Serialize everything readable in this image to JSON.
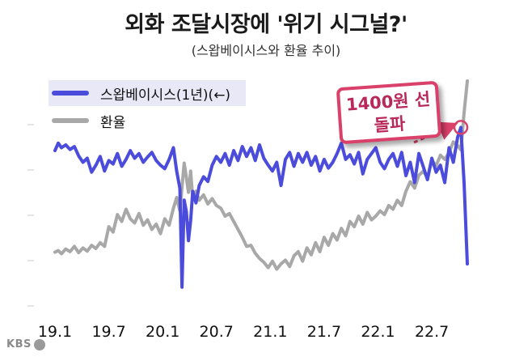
{
  "title": "외화 조달시장에 '위기 시그널?'",
  "subtitle": "(스왑베이시스와 환율 추이)",
  "logo": "KBS",
  "callout": {
    "line1": "1400원 선",
    "line2": "돌파",
    "color": "#d9406a"
  },
  "chart_data": {
    "type": "line",
    "title": "외화 조달시장에 '위기 시그널?'",
    "subtitle": "(스왑베이시스와 환율 추이)",
    "xlabel": "",
    "ylabel": "",
    "legend_position": "top-left",
    "x_ticks": [
      "19.1",
      "19.7",
      "20.1",
      "20.7",
      "21.1",
      "21.7",
      "22.1",
      "22.7"
    ],
    "x_range": [
      2019.0,
      2022.92
    ],
    "grid": false,
    "series": [
      {
        "name": "스왑베이시스(1년)(←)",
        "color": "#4b4bdc",
        "x": [
          2019.0,
          2019.03,
          2019.06,
          2019.1,
          2019.14,
          2019.18,
          2019.22,
          2019.26,
          2019.3,
          2019.34,
          2019.38,
          2019.42,
          2019.46,
          2019.5,
          2019.54,
          2019.58,
          2019.62,
          2019.66,
          2019.7,
          2019.74,
          2019.78,
          2019.82,
          2019.86,
          2019.9,
          2019.94,
          2019.98,
          2020.02,
          2020.06,
          2020.1,
          2020.13,
          2020.16,
          2020.18,
          2020.2,
          2020.22,
          2020.24,
          2020.26,
          2020.28,
          2020.31,
          2020.34,
          2020.38,
          2020.42,
          2020.46,
          2020.5,
          2020.54,
          2020.58,
          2020.62,
          2020.66,
          2020.7,
          2020.74,
          2020.78,
          2020.82,
          2020.86,
          2020.9,
          2020.94,
          2020.98,
          2021.02,
          2021.06,
          2021.1,
          2021.14,
          2021.18,
          2021.22,
          2021.26,
          2021.3,
          2021.34,
          2021.38,
          2021.42,
          2021.46,
          2021.5,
          2021.54,
          2021.58,
          2021.62,
          2021.66,
          2021.7,
          2021.74,
          2021.78,
          2021.82,
          2021.86,
          2021.9,
          2021.94,
          2021.98,
          2022.02,
          2022.06,
          2022.1,
          2022.14,
          2022.18,
          2022.22,
          2022.26,
          2022.3,
          2022.34,
          2022.38,
          2022.42,
          2022.46,
          2022.5,
          2022.54,
          2022.58,
          2022.62,
          2022.66,
          2022.7,
          2022.74,
          2022.77,
          2022.8,
          2022.83
        ],
        "values": [
          -0.35,
          -0.22,
          -0.3,
          -0.25,
          -0.33,
          -0.28,
          -0.44,
          -0.55,
          -0.48,
          -0.72,
          -0.6,
          -0.45,
          -0.7,
          -0.52,
          -0.58,
          -0.4,
          -0.62,
          -0.5,
          -0.35,
          -0.48,
          -0.4,
          -0.55,
          -0.46,
          -0.38,
          -0.52,
          -0.6,
          -0.66,
          -0.5,
          -0.3,
          -0.7,
          -1.0,
          -2.7,
          -1.2,
          -1.4,
          -1.9,
          -1.55,
          -1.05,
          -1.25,
          -0.95,
          -0.8,
          -0.88,
          -0.6,
          -0.45,
          -0.55,
          -0.4,
          -0.6,
          -0.35,
          -0.52,
          -0.28,
          -0.45,
          -0.3,
          -0.52,
          -0.25,
          -0.48,
          -0.6,
          -0.7,
          -0.55,
          -0.95,
          -0.5,
          -0.38,
          -0.62,
          -0.4,
          -0.55,
          -0.38,
          -0.6,
          -0.45,
          -0.7,
          -0.5,
          -0.65,
          -0.55,
          -0.4,
          -0.22,
          -0.5,
          -0.42,
          -0.58,
          -0.38,
          -0.75,
          -0.5,
          -0.4,
          -0.3,
          -0.55,
          -0.66,
          -0.5,
          -0.4,
          -0.62,
          -0.38,
          -0.78,
          -0.55,
          -0.9,
          -0.4,
          -0.62,
          -0.85,
          -0.48,
          -0.72,
          -0.6,
          -0.9,
          -0.3,
          -0.55,
          -0.12,
          0.05,
          -0.9,
          -2.3
        ],
        "y_range": [
          -2.8,
          0.85
        ]
      },
      {
        "name": "환율",
        "color": "#a8a8a8",
        "x": [
          2019.0,
          2019.03,
          2019.06,
          2019.1,
          2019.14,
          2019.18,
          2019.22,
          2019.26,
          2019.3,
          2019.34,
          2019.38,
          2019.42,
          2019.46,
          2019.5,
          2019.54,
          2019.58,
          2019.62,
          2019.66,
          2019.7,
          2019.74,
          2019.78,
          2019.82,
          2019.86,
          2019.9,
          2019.94,
          2019.98,
          2020.02,
          2020.06,
          2020.1,
          2020.13,
          2020.16,
          2020.18,
          2020.2,
          2020.22,
          2020.24,
          2020.26,
          2020.28,
          2020.31,
          2020.34,
          2020.38,
          2020.42,
          2020.46,
          2020.5,
          2020.54,
          2020.58,
          2020.62,
          2020.66,
          2020.7,
          2020.74,
          2020.78,
          2020.82,
          2020.86,
          2020.9,
          2020.94,
          2020.98,
          2021.02,
          2021.06,
          2021.1,
          2021.14,
          2021.18,
          2021.22,
          2021.26,
          2021.3,
          2021.34,
          2021.38,
          2021.42,
          2021.46,
          2021.5,
          2021.54,
          2021.58,
          2021.62,
          2021.66,
          2021.7,
          2021.74,
          2021.78,
          2021.82,
          2021.86,
          2021.9,
          2021.94,
          2021.98,
          2022.02,
          2022.06,
          2022.1,
          2022.14,
          2022.18,
          2022.22,
          2022.26,
          2022.3,
          2022.34,
          2022.38,
          2022.42,
          2022.46,
          2022.5,
          2022.54,
          2022.58,
          2022.62,
          2022.66,
          2022.7,
          2022.74,
          2022.77,
          2022.8,
          2022.83
        ],
        "values": [
          1117,
          1120,
          1114,
          1123,
          1118,
          1128,
          1116,
          1125,
          1119,
          1130,
          1124,
          1135,
          1128,
          1165,
          1155,
          1188,
          1175,
          1198,
          1180,
          1172,
          1190,
          1168,
          1178,
          1160,
          1170,
          1152,
          1180,
          1168,
          1200,
          1220,
          1195,
          1240,
          1285,
          1258,
          1230,
          1270,
          1218,
          1232,
          1215,
          1225,
          1208,
          1218,
          1205,
          1200,
          1185,
          1190,
          1175,
          1160,
          1145,
          1128,
          1130,
          1115,
          1105,
          1098,
          1088,
          1100,
          1085,
          1095,
          1102,
          1090,
          1110,
          1118,
          1100,
          1125,
          1112,
          1135,
          1118,
          1145,
          1130,
          1152,
          1140,
          1162,
          1148,
          1175,
          1165,
          1185,
          1170,
          1192,
          1178,
          1185,
          1195,
          1188,
          1205,
          1198,
          1215,
          1205,
          1232,
          1250,
          1238,
          1262,
          1270,
          1258,
          1290,
          1280,
          1300,
          1292,
          1305,
          1325,
          1318,
          1310,
          1380,
          1440
        ],
        "y_range": [
          1040,
          1440
        ]
      }
    ]
  }
}
